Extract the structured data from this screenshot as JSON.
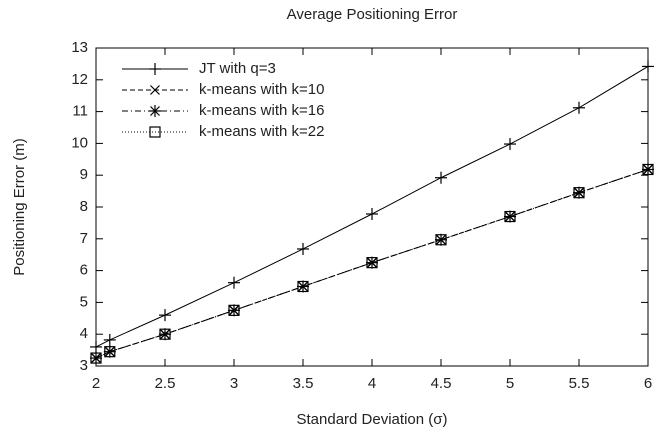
{
  "chart_data": {
    "type": "line",
    "title": "Average Positioning Error",
    "x_label": "Standard Deviation (σ)",
    "y_label": "Positioning Error (m)",
    "x": [
      2,
      2.1,
      2.5,
      3,
      3.5,
      4,
      4.5,
      5,
      5.5,
      6
    ],
    "series": [
      {
        "name": "JT with q=3",
        "color": "#000000",
        "marker": "plus",
        "line_style": "solid",
        "values": [
          3.6,
          3.82,
          4.6,
          5.62,
          6.68,
          7.78,
          8.92,
          9.98,
          11.12,
          12.42
        ]
      },
      {
        "name": "k-means with k=10",
        "color": "#000000",
        "marker": "cross",
        "line_style": "dashed",
        "values": [
          3.25,
          3.45,
          4.0,
          4.75,
          5.5,
          6.25,
          6.97,
          7.7,
          8.45,
          9.18
        ]
      },
      {
        "name": "k-means with k=16",
        "color": "#000000",
        "marker": "star",
        "line_style": "dashdot",
        "values": [
          3.25,
          3.45,
          4.0,
          4.75,
          5.5,
          6.25,
          6.97,
          7.7,
          8.45,
          9.18
        ]
      },
      {
        "name": "k-means with k=22",
        "color": "#000000",
        "marker": "square",
        "line_style": "dotted",
        "values": [
          3.25,
          3.45,
          4.0,
          4.75,
          5.5,
          6.25,
          6.97,
          7.7,
          8.45,
          9.18
        ]
      }
    ],
    "xlim": [
      2,
      6
    ],
    "xticks": [
      2,
      2.5,
      3,
      3.5,
      4,
      4.5,
      5,
      5.5,
      6
    ],
    "ylim": [
      3,
      13
    ],
    "yticks": [
      3,
      4,
      5,
      6,
      7,
      8,
      9,
      10,
      11,
      12,
      13
    ],
    "grid": false,
    "legend": "upper left"
  }
}
